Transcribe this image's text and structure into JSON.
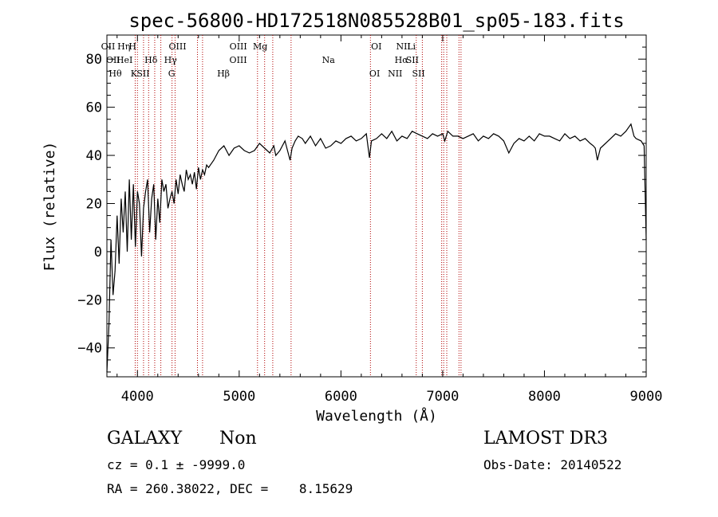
{
  "chart_data": {
    "type": "line",
    "title": "spec-56800-HD172518N085528B01_sp05-183.fits",
    "xlabel": "Wavelength (Å)",
    "ylabel": "Flux (relative)",
    "xlim": [
      3700,
      9000
    ],
    "ylim": [
      -52,
      90
    ],
    "grid": false,
    "x_ticks": [
      4000,
      5000,
      6000,
      7000,
      8000,
      9000
    ],
    "y_ticks": [
      -40,
      -20,
      0,
      20,
      40,
      60,
      80
    ],
    "series": [
      {
        "color": "#000000",
        "x": [
          3700,
          3720,
          3740,
          3760,
          3780,
          3800,
          3820,
          3840,
          3860,
          3880,
          3900,
          3920,
          3940,
          3960,
          3980,
          4000,
          4020,
          4040,
          4060,
          4080,
          4100,
          4120,
          4140,
          4160,
          4180,
          4200,
          4220,
          4240,
          4260,
          4280,
          4300,
          4320,
          4340,
          4360,
          4380,
          4400,
          4420,
          4440,
          4460,
          4480,
          4500,
          4520,
          4540,
          4560,
          4580,
          4600,
          4620,
          4640,
          4660,
          4680,
          4700,
          4750,
          4800,
          4850,
          4900,
          4950,
          5000,
          5050,
          5100,
          5150,
          5200,
          5250,
          5300,
          5340,
          5360,
          5400,
          5450,
          5500,
          5520,
          5550,
          5580,
          5620,
          5650,
          5700,
          5750,
          5800,
          5850,
          5900,
          5950,
          6000,
          6050,
          6100,
          6150,
          6200,
          6250,
          6280,
          6300,
          6350,
          6400,
          6450,
          6500,
          6550,
          6600,
          6650,
          6700,
          6750,
          6800,
          6850,
          6900,
          6950,
          7000,
          7020,
          7050,
          7100,
          7150,
          7200,
          7250,
          7300,
          7350,
          7400,
          7450,
          7500,
          7550,
          7600,
          7650,
          7700,
          7750,
          7800,
          7850,
          7900,
          7950,
          8000,
          8050,
          8100,
          8150,
          8200,
          8250,
          8300,
          8350,
          8400,
          8450,
          8480,
          8500,
          8520,
          8550,
          8600,
          8650,
          8700,
          8750,
          8800,
          8850,
          8880,
          8900,
          8950,
          8980,
          9000
        ],
        "y": [
          -50,
          -30,
          5,
          -18,
          -8,
          15,
          -5,
          22,
          8,
          25,
          0,
          30,
          5,
          28,
          2,
          25,
          20,
          -2,
          18,
          25,
          30,
          8,
          22,
          28,
          5,
          22,
          12,
          30,
          25,
          28,
          18,
          22,
          25,
          20,
          30,
          24,
          32,
          28,
          25,
          34,
          30,
          32,
          28,
          33,
          26,
          35,
          30,
          34,
          32,
          36,
          35,
          38,
          42,
          44,
          40,
          43,
          44,
          42,
          41,
          42,
          45,
          43,
          41,
          44,
          40,
          42,
          46,
          38,
          43,
          46,
          48,
          47,
          45,
          48,
          44,
          47,
          43,
          44,
          46,
          45,
          47,
          48,
          46,
          47,
          49,
          39,
          46,
          47,
          49,
          47,
          50,
          46,
          48,
          47,
          50,
          49,
          48,
          47,
          49,
          48,
          49,
          46,
          50,
          48,
          48,
          47,
          48,
          49,
          46,
          48,
          47,
          49,
          48,
          46,
          41,
          45,
          47,
          46,
          48,
          46,
          49,
          48,
          48,
          47,
          46,
          49,
          47,
          48,
          46,
          47,
          45,
          44,
          43,
          38,
          43,
          45,
          47,
          49,
          48,
          50,
          53,
          48,
          47,
          46,
          44,
          5
        ]
      }
    ],
    "annotations": [
      {
        "text": "OII",
        "x": 3727
      },
      {
        "text": "OII",
        "x": 3730
      },
      {
        "text": "Hθ",
        "x": 3798
      },
      {
        "text": "Hη",
        "x": 3835
      },
      {
        "text": "HeI",
        "x": 3889
      },
      {
        "text": "K",
        "x": 3934
      },
      {
        "text": "H",
        "x": 3968
      },
      {
        "text": "Hδ",
        "x": 4102
      },
      {
        "text": "SII",
        "x": 4072
      },
      {
        "text": "OIII",
        "x": 4363
      },
      {
        "text": "Hγ",
        "x": 4341
      },
      {
        "text": "G",
        "x": 4305
      },
      {
        "text": "OIII",
        "x": 5007
      },
      {
        "text": "OIII",
        "x": 4959
      },
      {
        "text": "Hβ",
        "x": 4861
      },
      {
        "text": "Mg",
        "x": 5175
      },
      {
        "text": "Na",
        "x": 5893
      },
      {
        "text": "OI",
        "x": 6300
      },
      {
        "text": "OI",
        "x": 6364
      },
      {
        "text": "Hα",
        "x": 6563
      },
      {
        "text": "NII",
        "x": 6548
      },
      {
        "text": "NII",
        "x": 6583
      },
      {
        "text": "SII",
        "x": 6717
      },
      {
        "text": "SII",
        "x": 6731
      },
      {
        "text": "Li",
        "x": 6708
      }
    ],
    "reference_lines_x": [
      3978,
      4000,
      4060,
      4110,
      4170,
      4230,
      4340,
      4370,
      4590,
      4640,
      5180,
      5250,
      5330,
      5510,
      6290,
      6740,
      6800,
      6990,
      7010,
      7040,
      7160,
      7180
    ]
  },
  "footer": {
    "object_class": "GALAXY",
    "subclass": "Non",
    "survey": "LAMOST DR3",
    "redshift": "cz = 0.1 ± -9999.0",
    "obs_date": "Obs-Date: 20140522",
    "coords": "RA = 260.38022, DEC =    8.15629"
  }
}
